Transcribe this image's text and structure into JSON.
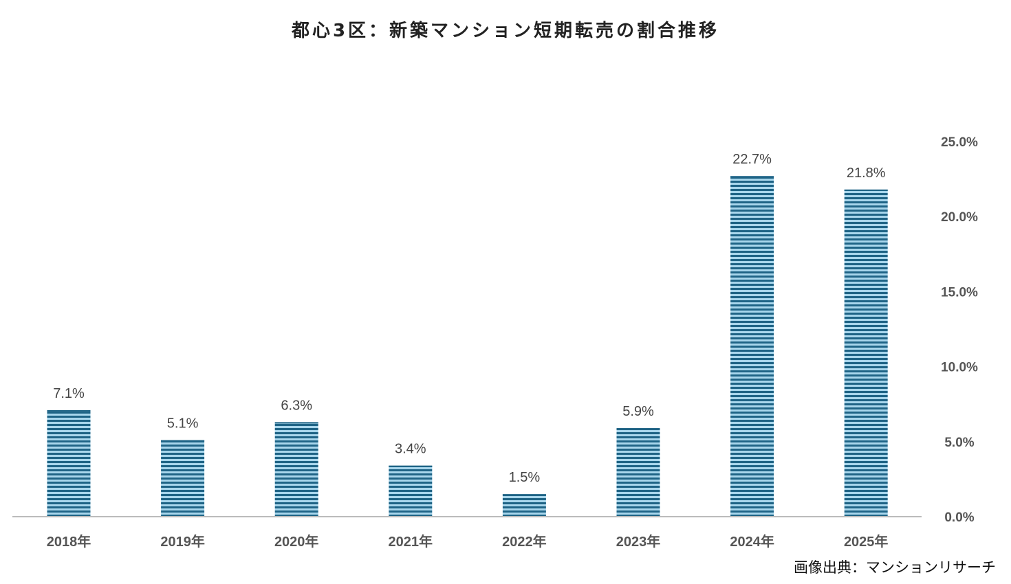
{
  "chart_data": {
    "type": "bar",
    "title": "都心3区：新築マンション短期転売の割合推移",
    "categories": [
      "2018年",
      "2019年",
      "2020年",
      "2021年",
      "2022年",
      "2023年",
      "2024年",
      "2025年"
    ],
    "values": [
      7.1,
      5.1,
      6.3,
      3.4,
      1.5,
      5.9,
      22.7,
      21.8
    ],
    "data_labels": [
      "7.1%",
      "5.1%",
      "6.3%",
      "3.4%",
      "1.5%",
      "5.9%",
      "22.7%",
      "21.8%"
    ],
    "ylim": [
      0,
      25
    ],
    "y_ticks": [
      "0.0%",
      "5.0%",
      "10.0%",
      "15.0%",
      "20.0%",
      "25.0%"
    ],
    "y_axis_side": "right",
    "grid": false,
    "bar_colors": {
      "dark": "#1f6486",
      "light": "#a8d6ec"
    },
    "source": "画像出典：マンションリサーチ"
  }
}
